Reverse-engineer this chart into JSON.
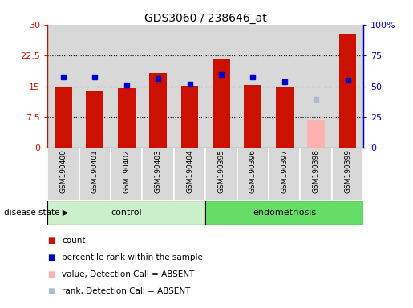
{
  "title": "GDS3060 / 238646_at",
  "samples": [
    "GSM190400",
    "GSM190401",
    "GSM190402",
    "GSM190403",
    "GSM190404",
    "GSM190395",
    "GSM190396",
    "GSM190397",
    "GSM190398",
    "GSM190399"
  ],
  "count_values": [
    15.0,
    13.7,
    14.5,
    18.2,
    15.1,
    21.7,
    15.2,
    14.7,
    null,
    27.8
  ],
  "percentile_values": [
    17.2,
    17.2,
    15.3,
    16.8,
    15.5,
    17.8,
    17.2,
    16.1,
    null,
    16.5
  ],
  "absent_value": 6.8,
  "absent_rank": 11.7,
  "absent_sample_idx": 8,
  "n_control": 5,
  "n_endo": 5,
  "ylim_left": [
    0,
    30
  ],
  "ylim_right": [
    0,
    100
  ],
  "yticks_left": [
    0,
    7.5,
    15,
    22.5,
    30
  ],
  "yticks_right": [
    0,
    25,
    50,
    75,
    100
  ],
  "ytick_labels_left": [
    "0",
    "7.5",
    "15",
    "22.5",
    "30"
  ],
  "ytick_labels_right": [
    "0",
    "25",
    "50",
    "75",
    "100%"
  ],
  "bar_color": "#cc1100",
  "percentile_color": "#0000cc",
  "absent_bar_color": "#ffb0b0",
  "absent_rank_color": "#b0b8cc",
  "control_bg": "#ccf0cc",
  "endo_bg": "#66dd66",
  "xtick_bg": "#d8d8d8",
  "bar_width": 0.55,
  "legend_items": [
    {
      "color": "#cc1100",
      "label": "count"
    },
    {
      "color": "#0000cc",
      "label": "percentile rank within the sample"
    },
    {
      "color": "#ffb0b0",
      "label": "value, Detection Call = ABSENT"
    },
    {
      "color": "#b0b8cc",
      "label": "rank, Detection Call = ABSENT"
    }
  ],
  "grid_lines": [
    7.5,
    15.0,
    22.5
  ],
  "disease_state_label": "disease state",
  "control_label": "control",
  "endo_label": "endometriosis"
}
